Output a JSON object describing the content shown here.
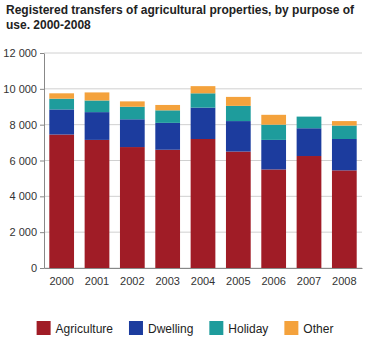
{
  "chart_data": {
    "type": "bar",
    "stacked": true,
    "grid": true,
    "legend": "bottom",
    "title": "Registered transfers of agricultural properties, by purpose of use. 2000-2008",
    "categories": [
      "2000",
      "2001",
      "2002",
      "2003",
      "2004",
      "2005",
      "2006",
      "2007",
      "2008"
    ],
    "series": [
      {
        "name": "Agriculture",
        "color": "#a01c26",
        "values": [
          7450,
          7150,
          6750,
          6600,
          7200,
          6500,
          5500,
          6250,
          5450
        ]
      },
      {
        "name": "Dwelling",
        "color": "#1c3c9e",
        "values": [
          1400,
          1550,
          1550,
          1500,
          1750,
          1700,
          1650,
          1550,
          1750
        ]
      },
      {
        "name": "Holiday",
        "color": "#1e9c9c",
        "values": [
          600,
          650,
          700,
          700,
          800,
          850,
          850,
          650,
          750
        ]
      },
      {
        "name": "Other",
        "color": "#f4a23c",
        "values": [
          300,
          450,
          300,
          300,
          400,
          500,
          550,
          0,
          250
        ]
      }
    ],
    "ylim": [
      0,
      12000
    ],
    "yticks": [
      0,
      {
        "value": 2000,
        "label": "2 000"
      },
      {
        "value": 4000,
        "label": "4 000"
      },
      {
        "value": 6000,
        "label": "6 000"
      },
      {
        "value": 8000,
        "label": "8 000"
      },
      {
        "value": 10000,
        "label": "10 000"
      },
      {
        "value": 12000,
        "label": "12 000"
      }
    ]
  }
}
